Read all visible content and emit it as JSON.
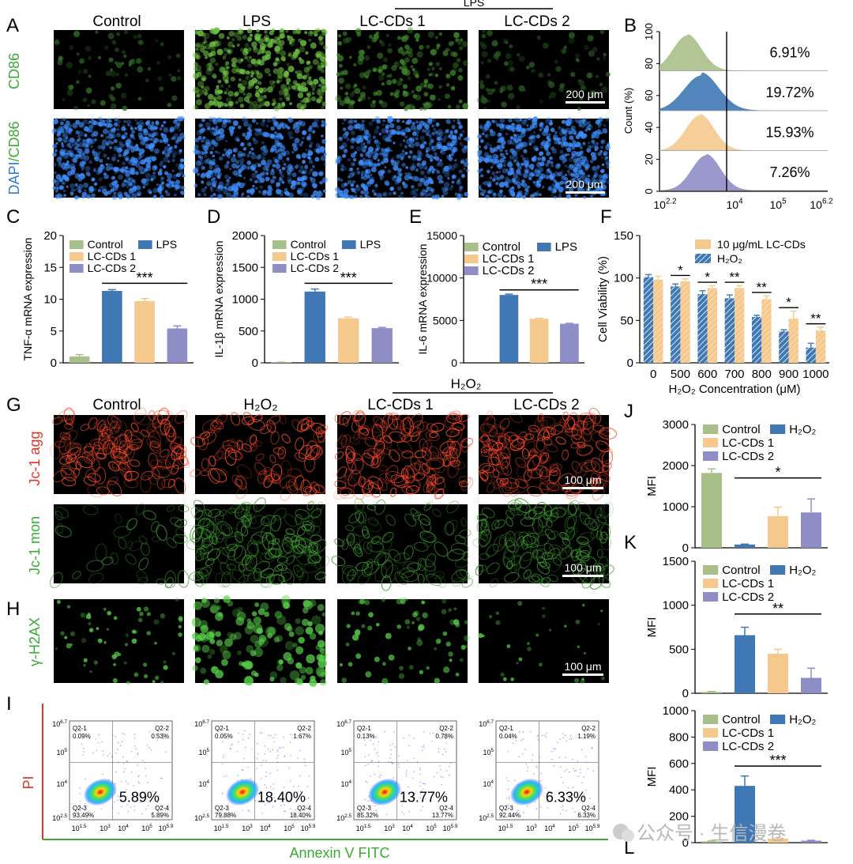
{
  "colors": {
    "control": "#A9BF8A",
    "lps": "#3F78B4",
    "lc1": "#F5C98E",
    "lc2": "#8F8DC6",
    "darkblue": "#3F78B4",
    "orange": "#F5C98E",
    "red": "#E0342B",
    "green": "#3BAA35",
    "blue": "#2E7BD6"
  },
  "panels": {
    "A": {
      "letter": "A",
      "columns": [
        "Control",
        "LPS",
        "LC-CDs 1",
        "LC-CDs 2"
      ],
      "group_label": "LPS",
      "rows": [
        "CD86",
        "DAPI/CD86"
      ],
      "row_label_dapi": "DAPI",
      "row_label_cd86": "/CD86",
      "scale_bar": "200 μm"
    },
    "B": {
      "letter": "B"
    },
    "G": {
      "letter": "G",
      "columns": [
        "Control",
        "H₂O₂",
        "LC-CDs 1",
        "LC-CDs 2"
      ],
      "group_label": "H₂O₂",
      "rows": [
        "Jc-1 agg",
        "Jc-1 mon"
      ],
      "scale_bar": "100 μm"
    },
    "H": {
      "letter": "H",
      "row": "γ-H2AX",
      "scale_bar": "100 μm"
    },
    "I": {
      "letter": "I",
      "ylabel": "PI",
      "xlabel": "Annexin V FITC",
      "big_percent": [
        "5.89%",
        "18.40%",
        "13.77%",
        "6.33%"
      ],
      "quadrants": [
        {
          "q1": "0.09%",
          "q2": "0.53%",
          "q3": "93.49%",
          "q4": "5.89%"
        },
        {
          "q1": "0.05%",
          "q2": "1.67%",
          "q3": "79.88%",
          "q4": "18.40%"
        },
        {
          "q1": "0.13%",
          "q2": "0.78%",
          "q3": "85.32%",
          "q4": "13.77%"
        },
        {
          "q1": "0.04%",
          "q2": "1.19%",
          "q3": "92.44%",
          "q4": "6.33%"
        }
      ],
      "qlabels": [
        "Q2-1",
        "Q2-2",
        "Q2-3",
        "Q2-4"
      ],
      "xticks": [
        "10^1.5",
        "10^3",
        "10^4",
        "10^5",
        "10^5.9"
      ],
      "yticks": [
        "10^6.7",
        "10^5",
        "10^4",
        "10^2.5"
      ]
    },
    "watermark": "公众号 · 生信漫卷"
  },
  "chart_data": [
    {
      "id": "B",
      "type": "histogram",
      "ylabel": "Count (%)",
      "yticks": [
        "0",
        "20",
        "40",
        "60",
        "80",
        "100"
      ],
      "xticks": [
        "10^2.2",
        "10^4",
        "10^5",
        "10^6.2"
      ],
      "series": [
        {
          "name": "Control",
          "percent": "6.91%"
        },
        {
          "name": "LPS",
          "percent": "19.72%"
        },
        {
          "name": "LC-CDs 1",
          "percent": "15.93%"
        },
        {
          "name": "LC-CDs 2",
          "percent": "7.26%"
        }
      ]
    },
    {
      "id": "C",
      "letter": "C",
      "type": "bar",
      "ylabel": "TNF-α mRNA expression",
      "ylim": [
        0,
        20
      ],
      "yticks": [
        0,
        5,
        10,
        15,
        20
      ],
      "categories": [
        "Control",
        "LPS",
        "LC-CDs 1",
        "LC-CDs 2"
      ],
      "values": [
        1.0,
        11.3,
        9.7,
        5.4
      ],
      "errors": [
        0.3,
        0.2,
        0.4,
        0.4
      ],
      "legend": [
        "Control",
        "LPS",
        "LC-CDs 1",
        "LC-CDs 2"
      ],
      "sig": "***",
      "sig_from": 1,
      "sig_to": 3,
      "sig_y": 12.5
    },
    {
      "id": "D",
      "letter": "D",
      "type": "bar",
      "ylabel": "IL-1β mRNA expression",
      "ylim": [
        0,
        2000
      ],
      "yticks": [
        0,
        500,
        1000,
        1500,
        2000
      ],
      "categories": [
        "Control",
        "LPS",
        "LC-CDs 1",
        "LC-CDs 2"
      ],
      "values": [
        8,
        1120,
        700,
        545
      ],
      "errors": [
        3,
        40,
        20,
        12
      ],
      "legend": [
        "Control",
        "LPS",
        "LC-CDs 1",
        "LC-CDs 2"
      ],
      "sig": "***",
      "sig_from": 1,
      "sig_to": 3,
      "sig_y": 1250
    },
    {
      "id": "E",
      "letter": "E",
      "type": "bar",
      "ylabel": "IL-6 mRNA expression",
      "ylim": [
        0,
        15000
      ],
      "yticks": [
        0,
        5000,
        10000,
        15000
      ],
      "categories": [
        "Control",
        "LPS",
        "LC-CDs 1",
        "LC-CDs 2"
      ],
      "values": [
        0,
        8000,
        5200,
        4600
      ],
      "errors": [
        0,
        100,
        60,
        60
      ],
      "legend": [
        "Control",
        "LPS",
        "LC-CDs 1",
        "LC-CDs 2"
      ],
      "sig": "***",
      "sig_from": 1,
      "sig_to": 3,
      "sig_y": 8600
    },
    {
      "id": "F",
      "letter": "F",
      "type": "grouped-bar",
      "ylabel": "Cell Viability (%)",
      "xlabel": "H₂O₂ Concentration (μM)",
      "ylim": [
        0,
        150
      ],
      "yticks": [
        0,
        50,
        100,
        150
      ],
      "categories": [
        "0",
        "500",
        "600",
        "700",
        "800",
        "900",
        "1000"
      ],
      "series": [
        {
          "name": "H₂O₂",
          "values": [
            101,
            90,
            81,
            76,
            54,
            37,
            18
          ],
          "errors": [
            3,
            3,
            4,
            4,
            2,
            2,
            5
          ]
        },
        {
          "name": "10 μg/mL LC-CDs",
          "values": [
            98,
            96,
            88,
            88,
            75,
            52,
            38
          ],
          "errors": [
            4,
            3,
            3,
            3,
            4,
            9,
            4
          ]
        }
      ],
      "sig": [
        "",
        "*",
        "*",
        "**",
        "**",
        "*",
        "**"
      ]
    },
    {
      "id": "J",
      "letter": "J",
      "type": "bar",
      "ylabel": "MFI",
      "ylim": [
        0,
        3000
      ],
      "yticks": [
        0,
        1000,
        2000,
        3000
      ],
      "categories": [
        "Control",
        "H₂O₂",
        "LC-CDs 1",
        "LC-CDs 2"
      ],
      "values": [
        1820,
        80,
        770,
        860
      ],
      "errors": [
        100,
        10,
        220,
        330
      ],
      "legend": [
        "Control",
        "H₂O₂",
        "LC-CDs 1",
        "LC-CDs 2"
      ],
      "sig": "*",
      "sig_from": 1,
      "sig_to": 3,
      "sig_y": 1700
    },
    {
      "id": "K",
      "letter": "K",
      "type": "bar",
      "ylabel": "MFI",
      "ylim": [
        0,
        1500
      ],
      "yticks": [
        0,
        500,
        1000,
        1500
      ],
      "categories": [
        "Control",
        "H₂O₂",
        "LC-CDs 1",
        "LC-CDs 2"
      ],
      "values": [
        15,
        660,
        450,
        175
      ],
      "errors": [
        5,
        90,
        50,
        110
      ],
      "legend": [
        "Control",
        "H₂O₂",
        "LC-CDs 1",
        "LC-CDs 2"
      ],
      "sig": "**",
      "sig_from": 1,
      "sig_to": 3,
      "sig_y": 900
    },
    {
      "id": "L",
      "letter": "L",
      "type": "bar",
      "ylabel": "MFI",
      "ylim": [
        0,
        1000
      ],
      "yticks": [
        0,
        200,
        400,
        600,
        800,
        1000
      ],
      "categories": [
        "Control",
        "H₂O₂",
        "LC-CDs 1",
        "LC-CDs 2"
      ],
      "values": [
        10,
        430,
        30,
        15
      ],
      "errors": [
        3,
        75,
        5,
        3
      ],
      "legend": [
        "Control",
        "H₂O₂",
        "LC-CDs 1",
        "LC-CDs 2"
      ],
      "sig": "***",
      "sig_from": 1,
      "sig_to": 3,
      "sig_y": 580
    }
  ]
}
